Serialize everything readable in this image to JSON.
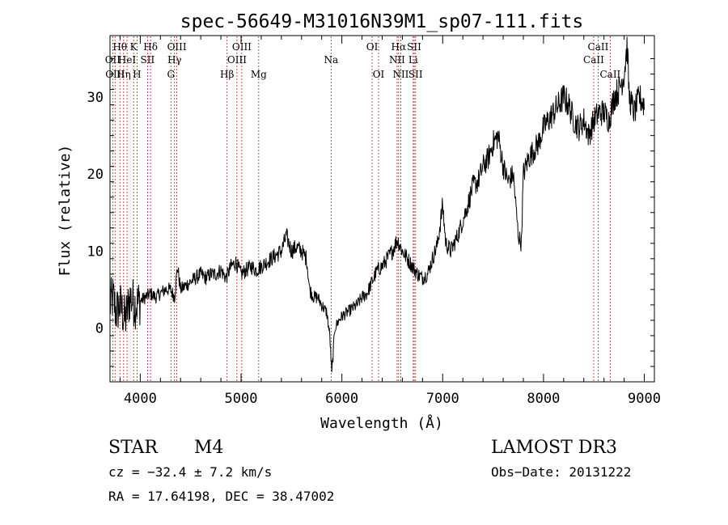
{
  "chart_data": {
    "type": "line",
    "title": "spec-56649-M31016N39M1_sp07-111.fits",
    "xlabel": "Wavelength (Å)",
    "ylabel": "Flux (relative)",
    "xlim": [
      3700,
      9100
    ],
    "ylim": [
      -7,
      38
    ],
    "x_ticks": [
      4000,
      5000,
      6000,
      7000,
      8000,
      9000
    ],
    "x_tick_labels": [
      "4000",
      "5000",
      "6000",
      "7000",
      "8000",
      "9000"
    ],
    "y_ticks": [
      0,
      10,
      20,
      30
    ],
    "y_tick_labels": [
      "0",
      "10",
      "20",
      "30"
    ],
    "series": [
      {
        "name": "flux",
        "anchors": [
          [
            3700,
            3
          ],
          [
            3730,
            4
          ],
          [
            3760,
            2
          ],
          [
            3800,
            3
          ],
          [
            3850,
            1
          ],
          [
            3900,
            4
          ],
          [
            3950,
            3
          ],
          [
            4000,
            3.5
          ],
          [
            4050,
            4
          ],
          [
            4100,
            4.5
          ],
          [
            4150,
            4
          ],
          [
            4200,
            4.5
          ],
          [
            4250,
            5
          ],
          [
            4300,
            5
          ],
          [
            4340,
            4
          ],
          [
            4370,
            8
          ],
          [
            4400,
            5
          ],
          [
            4450,
            5.5
          ],
          [
            4500,
            6
          ],
          [
            4550,
            6.5
          ],
          [
            4600,
            7
          ],
          [
            4650,
            6.5
          ],
          [
            4700,
            7
          ],
          [
            4750,
            7
          ],
          [
            4800,
            7.5
          ],
          [
            4850,
            6.5
          ],
          [
            4900,
            8
          ],
          [
            4950,
            8.5
          ],
          [
            5000,
            7
          ],
          [
            5050,
            7.5
          ],
          [
            5100,
            8
          ],
          [
            5150,
            7.5
          ],
          [
            5200,
            8
          ],
          [
            5250,
            8.5
          ],
          [
            5300,
            9
          ],
          [
            5350,
            9.5
          ],
          [
            5400,
            10
          ],
          [
            5450,
            12
          ],
          [
            5500,
            10
          ],
          [
            5550,
            10.5
          ],
          [
            5600,
            10
          ],
          [
            5650,
            9
          ],
          [
            5680,
            5
          ],
          [
            5720,
            4
          ],
          [
            5760,
            4
          ],
          [
            5800,
            3
          ],
          [
            5850,
            2
          ],
          [
            5880,
            -1
          ],
          [
            5900,
            -6
          ],
          [
            5930,
            0
          ],
          [
            5970,
            1
          ],
          [
            6000,
            1.5
          ],
          [
            6050,
            2
          ],
          [
            6100,
            2.5
          ],
          [
            6150,
            3
          ],
          [
            6200,
            4
          ],
          [
            6250,
            4.5
          ],
          [
            6300,
            6
          ],
          [
            6350,
            7.5
          ],
          [
            6400,
            8
          ],
          [
            6450,
            9
          ],
          [
            6500,
            10
          ],
          [
            6550,
            11.5
          ],
          [
            6600,
            10
          ],
          [
            6650,
            9
          ],
          [
            6700,
            8
          ],
          [
            6750,
            7
          ],
          [
            6800,
            6.5
          ],
          [
            6850,
            7
          ],
          [
            6900,
            9
          ],
          [
            6950,
            11
          ],
          [
            7000,
            16
          ],
          [
            7030,
            11
          ],
          [
            7080,
            10
          ],
          [
            7150,
            12
          ],
          [
            7200,
            14
          ],
          [
            7250,
            16
          ],
          [
            7300,
            18.5
          ],
          [
            7350,
            19
          ],
          [
            7400,
            21
          ],
          [
            7450,
            22
          ],
          [
            7500,
            24
          ],
          [
            7550,
            25
          ],
          [
            7600,
            21
          ],
          [
            7650,
            19
          ],
          [
            7700,
            20
          ],
          [
            7750,
            12
          ],
          [
            7780,
            11
          ],
          [
            7800,
            20
          ],
          [
            7850,
            22
          ],
          [
            7900,
            23
          ],
          [
            7950,
            24
          ],
          [
            8000,
            26
          ],
          [
            8050,
            27
          ],
          [
            8100,
            28
          ],
          [
            8150,
            29
          ],
          [
            8200,
            30
          ],
          [
            8250,
            29
          ],
          [
            8300,
            27
          ],
          [
            8350,
            26
          ],
          [
            8400,
            27
          ],
          [
            8450,
            25
          ],
          [
            8500,
            27
          ],
          [
            8550,
            28
          ],
          [
            8600,
            28
          ],
          [
            8650,
            27
          ],
          [
            8700,
            30
          ],
          [
            8750,
            31
          ],
          [
            8800,
            33
          ],
          [
            8830,
            37
          ],
          [
            8850,
            30
          ],
          [
            8900,
            28
          ],
          [
            8950,
            30
          ],
          [
            9000,
            29
          ]
        ]
      }
    ],
    "lines": [
      {
        "x": 3727,
        "label": "OII",
        "row": 2
      },
      {
        "x": 3750,
        "label": "OIII",
        "row": 3
      },
      {
        "x": 3798,
        "label": "Hθ",
        "row": 1
      },
      {
        "x": 3835,
        "label": "Hη",
        "row": 3
      },
      {
        "x": 3869,
        "label": "HeI",
        "row": 2
      },
      {
        "x": 3934,
        "label": "K",
        "row": 1
      },
      {
        "x": 3968,
        "label": "H",
        "row": 3
      },
      {
        "x": 4072,
        "label": "SII",
        "row": 2
      },
      {
        "x": 4102,
        "label": "Hδ",
        "row": 1
      },
      {
        "x": 4304,
        "label": "G",
        "row": 3
      },
      {
        "x": 4340,
        "label": "Hγ",
        "row": 2
      },
      {
        "x": 4363,
        "label": "OIII",
        "row": 1
      },
      {
        "x": 4861,
        "label": "Hβ",
        "row": 3
      },
      {
        "x": 4959,
        "label": "OIII",
        "row": 2
      },
      {
        "x": 5007,
        "label": "OIII",
        "row": 1
      },
      {
        "x": 5175,
        "label": "Mg",
        "row": 3
      },
      {
        "x": 5893,
        "label": "Na",
        "row": 2
      },
      {
        "x": 6300,
        "label": "OI",
        "row": 1
      },
      {
        "x": 6364,
        "label": "OI",
        "row": 3
      },
      {
        "x": 6548,
        "label": "NII",
        "row": 2
      },
      {
        "x": 6563,
        "label": "Hα",
        "row": 1
      },
      {
        "x": 6584,
        "label": "NII",
        "row": 3
      },
      {
        "x": 6707,
        "label": "Li",
        "row": 2
      },
      {
        "x": 6717,
        "label": "SII",
        "row": 1
      },
      {
        "x": 6731,
        "label": "SII",
        "row": 3
      },
      {
        "x": 8498,
        "label": "CaII",
        "row": 2
      },
      {
        "x": 8542,
        "label": "CaII",
        "row": 1
      },
      {
        "x": 8662,
        "label": "CaII",
        "row": 3
      }
    ]
  },
  "info": {
    "class": "STAR",
    "subclass": "M4",
    "survey": "LAMOST DR3",
    "cz": "cz = −32.4 ± 7.2 km/s",
    "obs_date": "Obs−Date: 20131222",
    "radec": "RA =  17.64198, DEC =  38.47002"
  }
}
